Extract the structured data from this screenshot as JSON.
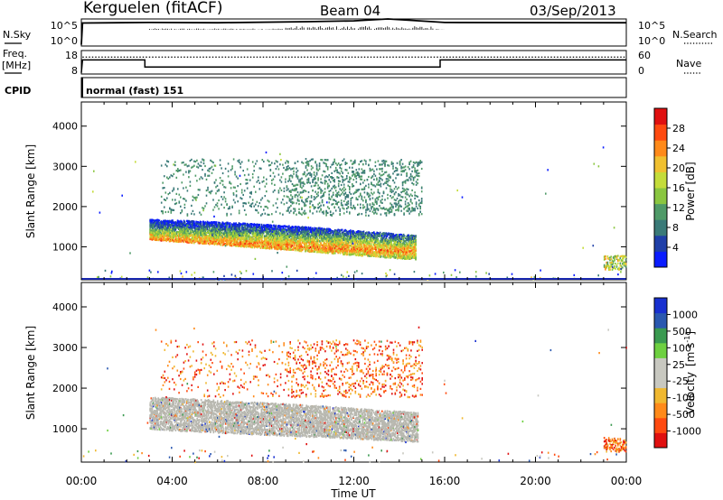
{
  "header": {
    "station": "Kerguelen (fitACF)",
    "beam": "Beam 04",
    "date": "03/Sep/2013"
  },
  "panels": {
    "nsky": {
      "left_label": "N.Sky",
      "left_ticks": [
        "10^5",
        "10^0"
      ],
      "right_ticks": [
        "10^5",
        "10^0"
      ],
      "right_label": "N.Search"
    },
    "freq": {
      "left_label_line1": "Freq.",
      "left_label_line2": "[MHz]",
      "left_ticks": [
        "18",
        "8"
      ],
      "right_ticks": [
        "60",
        "0"
      ],
      "right_label": "Nave"
    },
    "cpid": {
      "label": "CPID",
      "value": "normal (fast) 151"
    }
  },
  "colors": {
    "power_scale": [
      "#0a1cff",
      "#1f3fa8",
      "#3a7a78",
      "#4f9a68",
      "#8ac640",
      "#c4dc3a",
      "#f0c030",
      "#ff8a1a",
      "#ff4a10",
      "#e01010"
    ],
    "velocity_scale": [
      "#e01010",
      "#ff4a10",
      "#ff8a1a",
      "#f0b830",
      "#c8c8c0",
      "#c8c8c0",
      "#6ed040",
      "#3a9a50",
      "#2a58b0",
      "#1830d0"
    ],
    "ground_scatter": "#b8b8b0",
    "axis": "#000000"
  },
  "chart_data": [
    {
      "type": "heatmap",
      "title": "",
      "xlabel": "Time UT",
      "ylabel": "Slant Range [km]",
      "xlim_hours": [
        0,
        24
      ],
      "ylim_km": [
        180,
        4600
      ],
      "x_ticks": [
        "00:00",
        "04:00",
        "08:00",
        "12:00",
        "16:00",
        "20:00",
        "00:00"
      ],
      "y_ticks": [
        1000,
        2000,
        3000,
        4000
      ],
      "colorbar_label": "Power [dB]",
      "colorbar_ticks": [
        "28",
        "24",
        "20",
        "16",
        "12",
        "8",
        "4"
      ],
      "colorbar_range": [
        0,
        30
      ],
      "main_echo_band": {
        "start_hour": 3.0,
        "end_hour": 14.7,
        "range_km_low": 700,
        "range_km_high": 1700,
        "peak_power_db": 28
      },
      "upper_echo_band": {
        "start_hour": 3.5,
        "end_hour": 15.0,
        "range_km_low": 1800,
        "range_km_high": 3200,
        "typical_power_db": 6
      },
      "late_echoes": {
        "start_hour": 23.0,
        "end_hour": 24.0,
        "range_km_low": 450,
        "range_km_high": 800,
        "typical_power_db": 10
      }
    },
    {
      "type": "heatmap",
      "title": "",
      "xlabel": "Time UT",
      "ylabel": "Slant Range [km]",
      "xlim_hours": [
        0,
        24
      ],
      "ylim_km": [
        180,
        4600
      ],
      "x_ticks": [
        "00:00",
        "04:00",
        "08:00",
        "12:00",
        "16:00",
        "20:00",
        "00:00"
      ],
      "y_ticks": [
        1000,
        2000,
        3000,
        4000
      ],
      "colorbar_label": "Velocity [m s-1]",
      "colorbar_ticks": [
        "1000",
        "500",
        "100",
        "25",
        "-25",
        "-100",
        "-500",
        "-1000"
      ],
      "colorbar_range": [
        -1000,
        1000
      ],
      "ground_scatter_band": {
        "start_hour": 3.0,
        "end_hour": 14.8,
        "range_km_low": 700,
        "range_km_high": 1800
      }
    }
  ],
  "ts_data": {
    "nsky_series": [
      [
        0.0,
        0.05
      ],
      [
        0.05,
        0.85
      ],
      [
        3.0,
        0.87
      ],
      [
        6.0,
        0.86
      ],
      [
        10.0,
        0.9
      ],
      [
        12.0,
        0.93
      ],
      [
        13.5,
        1.0
      ],
      [
        14.5,
        0.95
      ],
      [
        16.0,
        0.87
      ],
      [
        24.0,
        0.86
      ]
    ],
    "freq_sequence": [
      [
        0.0,
        0.05
      ],
      [
        0.05,
        0.6
      ],
      [
        2.8,
        0.6
      ],
      [
        2.8,
        0.3
      ],
      [
        15.8,
        0.3
      ],
      [
        15.8,
        0.6
      ],
      [
        24.0,
        0.6
      ]
    ],
    "nave_level": 0.72
  },
  "axis_labels": {
    "time": "Time UT",
    "range_upper": "Slant Range [km]",
    "range_lower": "Slant Range [km]",
    "power_cb": "Power [dB]",
    "velocity_cb_main": "Velocity",
    "velocity_cb_units": "[m s",
    "velocity_cb_exp": "-1",
    "velocity_cb_close": "]"
  }
}
